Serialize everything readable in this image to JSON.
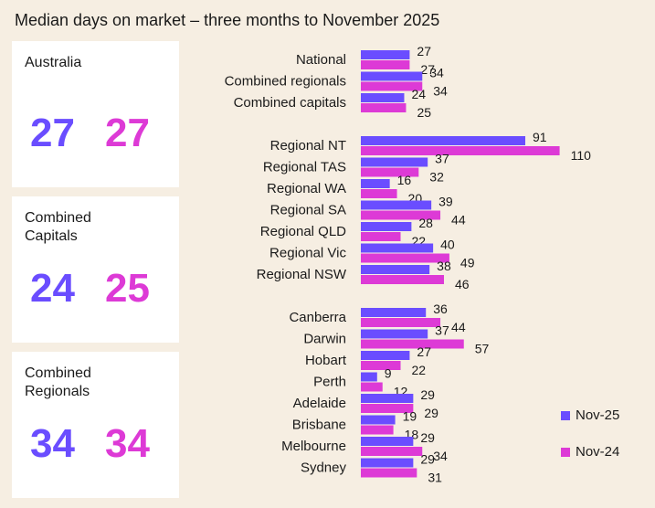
{
  "title": "Median days on market – three months to November 2025",
  "panels": [
    {
      "label": "Australia",
      "nov25": "27",
      "nov24": "27"
    },
    {
      "label": "Combined Capitals",
      "nov25": "24",
      "nov24": "25"
    },
    {
      "label": "Combined Regionals",
      "nov25": "34",
      "nov24": "34"
    }
  ],
  "colors": {
    "nov25": "#6a4dff",
    "nov24": "#dd3ad6",
    "background": "#f6eee2"
  },
  "chart_data": {
    "type": "bar",
    "orientation": "horizontal",
    "categories": [
      "National",
      "Combined regionals",
      "Combined capitals",
      "Regional NT",
      "Regional TAS",
      "Regional WA",
      "Regional SA",
      "Regional QLD",
      "Regional Vic",
      "Regional NSW",
      "Canberra",
      "Darwin",
      "Hobart",
      "Perth",
      "Adelaide",
      "Brisbane",
      "Melbourne",
      "Sydney"
    ],
    "groups": [
      [
        0,
        1,
        2
      ],
      [
        3,
        4,
        5,
        6,
        7,
        8,
        9
      ],
      [
        10,
        11,
        12,
        13,
        14,
        15,
        16,
        17
      ]
    ],
    "series": [
      {
        "name": "Nov-25",
        "color": "#6a4dff",
        "values": [
          27,
          34,
          24,
          91,
          37,
          16,
          39,
          28,
          40,
          38,
          36,
          37,
          27,
          9,
          29,
          19,
          29,
          29
        ]
      },
      {
        "name": "Nov-24",
        "color": "#dd3ad6",
        "values": [
          27,
          34,
          25,
          110,
          32,
          20,
          44,
          22,
          49,
          46,
          44,
          57,
          22,
          12,
          29,
          18,
          34,
          31
        ]
      }
    ],
    "legend": "right",
    "grid": false,
    "data_labels": true
  }
}
